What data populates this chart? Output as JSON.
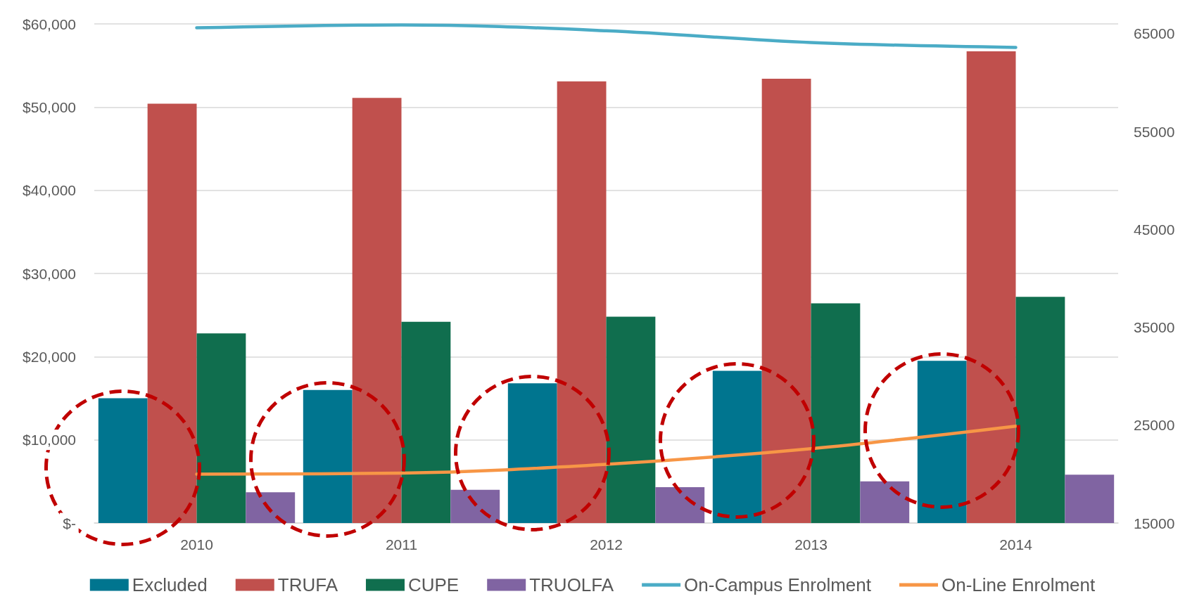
{
  "chart_data": {
    "type": "bar",
    "categories": [
      "2010",
      "2011",
      "2012",
      "2013",
      "2014"
    ],
    "series": [
      {
        "name": "Excluded",
        "color": "#00758f",
        "values": [
          15000,
          16000,
          16800,
          18300,
          19500
        ]
      },
      {
        "name": "TRUFA",
        "color": "#c0504d",
        "values": [
          50400,
          51100,
          53100,
          53400,
          56700
        ]
      },
      {
        "name": "CUPE",
        "color": "#106e4e",
        "values": [
          22800,
          24200,
          24800,
          26400,
          27200
        ]
      },
      {
        "name": "TRUOLFA",
        "color": "#8064a2",
        "values": [
          3700,
          4000,
          4300,
          5000,
          5800
        ]
      },
      {
        "name": "On-Campus Enrolment",
        "type": "line",
        "axis": "y2",
        "color": "#4bacc6",
        "values": [
          65600,
          65900,
          65300,
          64100,
          63600
        ]
      },
      {
        "name": "On-Line Enrolment",
        "type": "line",
        "axis": "y2",
        "color": "#f79646",
        "values": [
          20000,
          20100,
          21000,
          22600,
          24900
        ]
      }
    ],
    "ylim": [
      0,
      60000
    ],
    "yticks": [
      {
        "value": 0,
        "label": "$-"
      },
      {
        "value": 10000,
        "label": "$10,000"
      },
      {
        "value": 20000,
        "label": "$20,000"
      },
      {
        "value": 30000,
        "label": "$30,000"
      },
      {
        "value": 40000,
        "label": "$40,000"
      },
      {
        "value": 50000,
        "label": "$50,000"
      },
      {
        "value": 60000,
        "label": "$60,000"
      }
    ],
    "y2lim": [
      15000,
      66000
    ],
    "y2ticks": [
      15000,
      25000,
      35000,
      45000,
      55000,
      65000
    ],
    "grid": "y",
    "legend": "bottom",
    "marker": "none",
    "line_style": "solid"
  }
}
